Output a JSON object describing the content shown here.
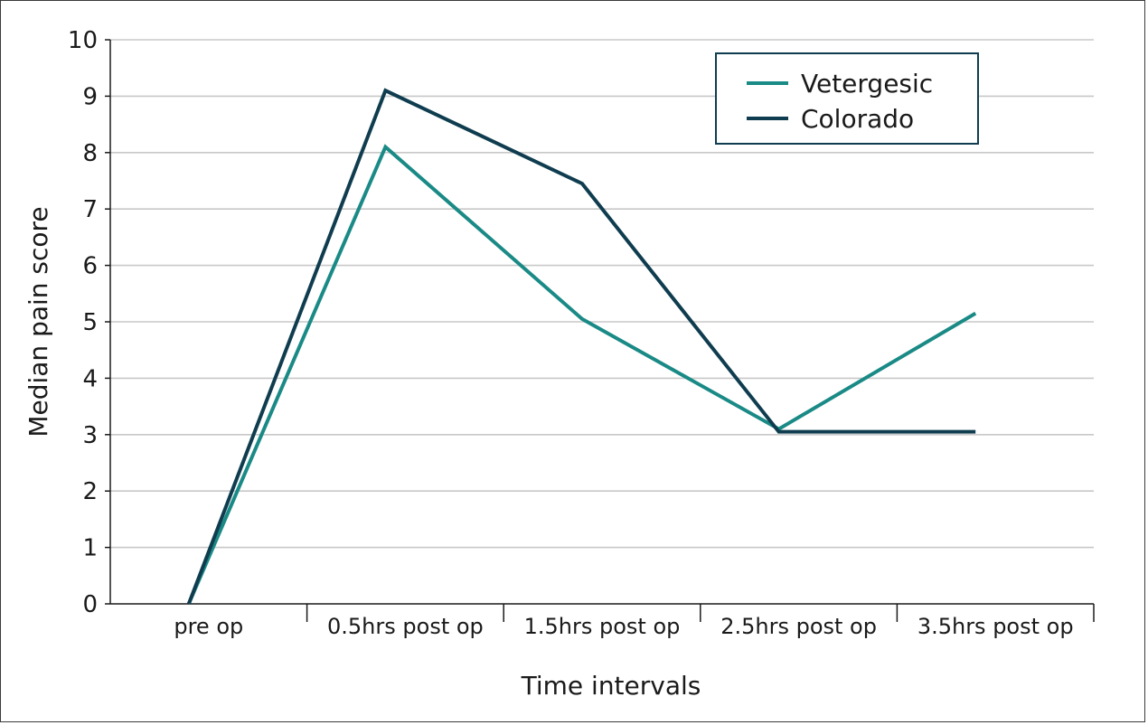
{
  "chart_data": {
    "type": "line",
    "title": "",
    "xlabel": "Time intervals",
    "ylabel": "Median pain score",
    "categories": [
      "pre op",
      "0.5hrs post op",
      "1.5hrs post op",
      "2.5hrs post op",
      "3.5hrs post op"
    ],
    "ylim": [
      0,
      10
    ],
    "yticks": [
      "0",
      "1",
      "2",
      "3",
      "4",
      "5",
      "6",
      "7",
      "8",
      "9",
      "10"
    ],
    "grid": "horizontal",
    "legend_position": "top-right",
    "series": [
      {
        "name": "Vetergesic",
        "color": "#1a8a86",
        "values": [
          0,
          8.1,
          5.05,
          3.1,
          5.15
        ]
      },
      {
        "name": "Colorado",
        "color": "#0f3d4f",
        "values": [
          0,
          9.1,
          7.45,
          3.05,
          3.05
        ]
      }
    ]
  }
}
